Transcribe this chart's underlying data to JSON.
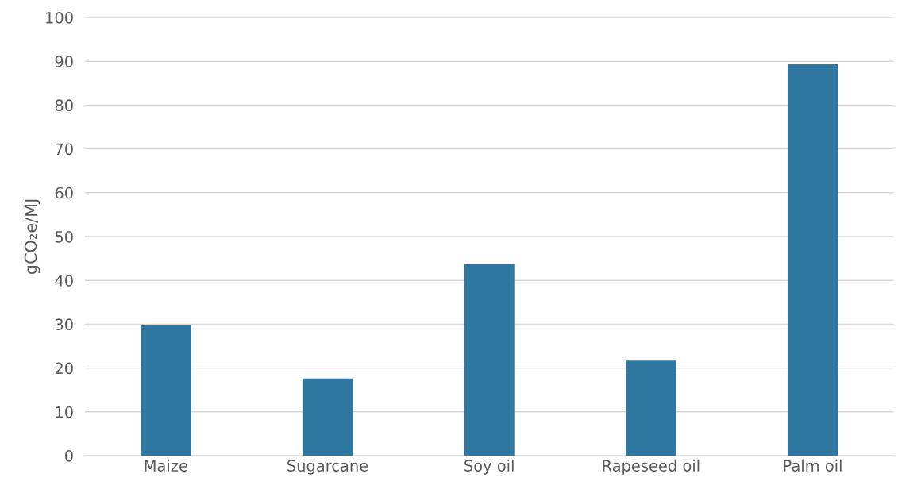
{
  "chart_data": {
    "type": "bar",
    "ylabel": "gCO₂e/MJ",
    "categories": [
      "Maize",
      "Sugarcane",
      "Soy oil",
      "Rapeseed oil",
      "Palm oil"
    ],
    "values": [
      29.7,
      17.6,
      43.7,
      21.7,
      89.3
    ],
    "color": "#2e77a0",
    "ylim": [
      0,
      100
    ],
    "yticks": [
      0,
      10,
      20,
      30,
      40,
      50,
      60,
      70,
      80,
      90,
      100
    ],
    "grid": "y",
    "legend": false
  }
}
